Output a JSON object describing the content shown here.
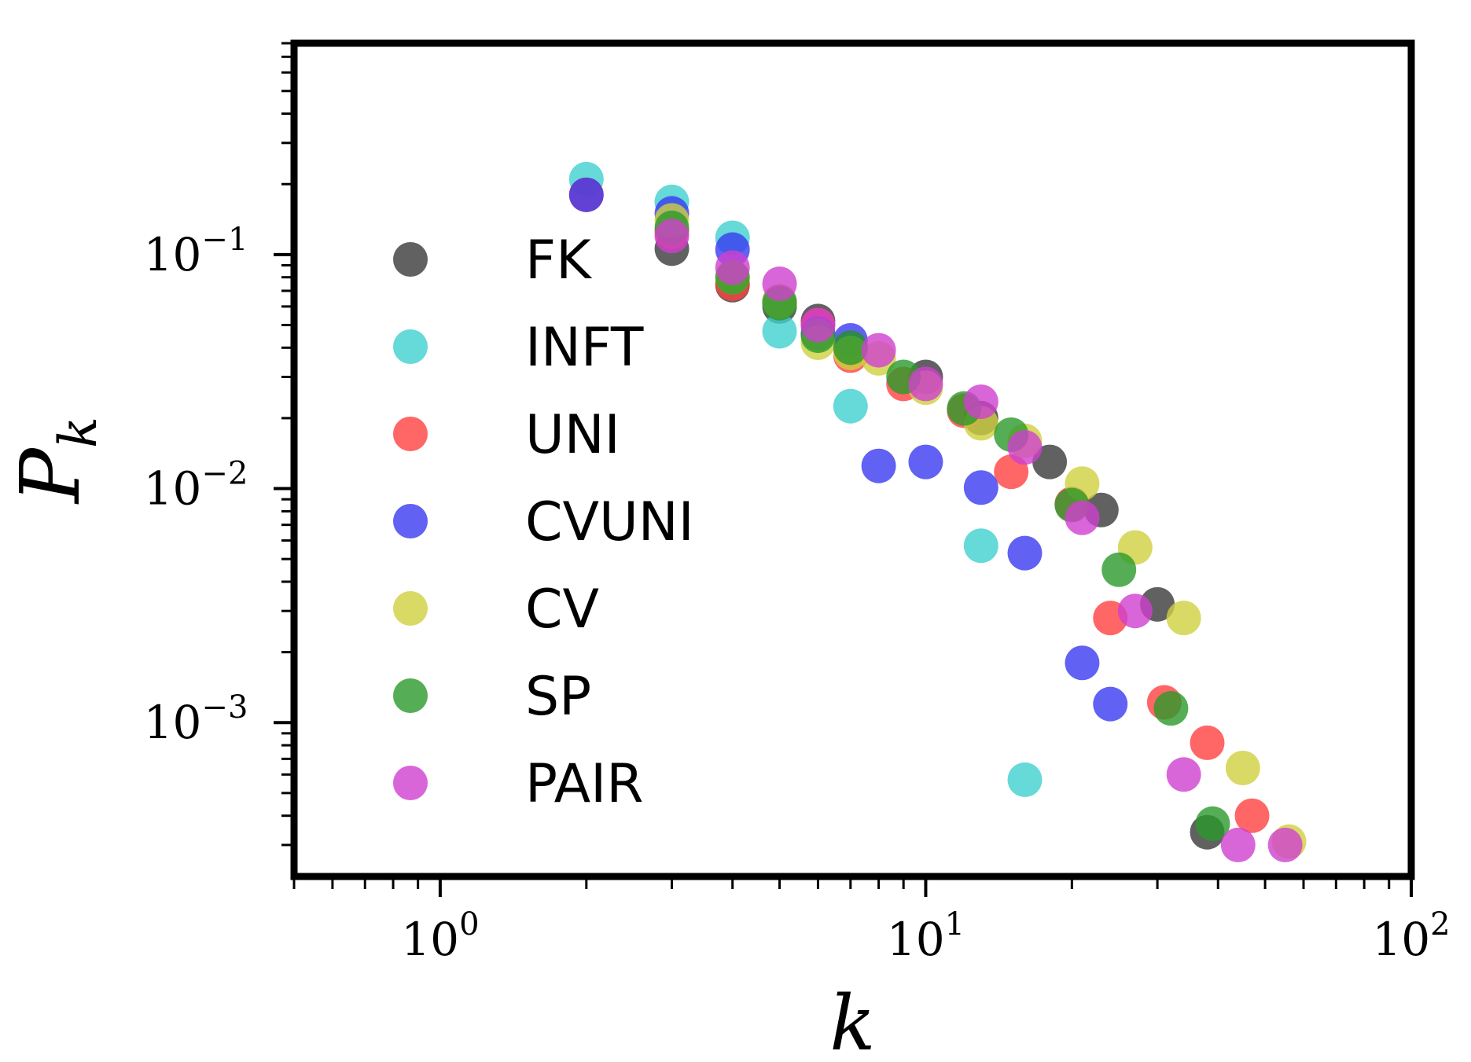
{
  "chart_data": {
    "type": "scatter",
    "title": "",
    "xlabel": "k",
    "ylabel": "P",
    "ylabel_sub": "k",
    "xscale": "log",
    "yscale": "log",
    "xlim": [
      0.5,
      100
    ],
    "ylim": [
      0.00022,
      0.8
    ],
    "x_ticks": [
      {
        "value": 1,
        "base": "10",
        "exp": "0"
      },
      {
        "value": 10,
        "base": "10",
        "exp": "1"
      },
      {
        "value": 100,
        "base": "10",
        "exp": "2"
      }
    ],
    "y_ticks": [
      {
        "value": 0.1,
        "base": "10",
        "exp": "−1"
      },
      {
        "value": 0.01,
        "base": "10",
        "exp": "−2"
      },
      {
        "value": 0.001,
        "base": "10",
        "exp": "−3"
      }
    ],
    "legend_position": "center-left",
    "series": [
      {
        "name": "FK",
        "color": "#3a3a3a",
        "x": [
          3,
          4,
          5,
          6,
          7,
          10,
          13,
          18,
          23,
          30,
          38
        ],
        "y": [
          0.106,
          0.074,
          0.06,
          0.052,
          0.04,
          0.03,
          0.02,
          0.013,
          0.0081,
          0.0032,
          0.00034
        ]
      },
      {
        "name": "INFT",
        "color": "#40d0d0",
        "x": [
          2,
          3,
          4,
          5,
          7,
          13,
          16
        ],
        "y": [
          0.21,
          0.168,
          0.118,
          0.047,
          0.0225,
          0.0057,
          0.00057
        ]
      },
      {
        "name": "UNI",
        "color": "#ff4040",
        "x": [
          2,
          3,
          4,
          5,
          6,
          7,
          9,
          12,
          15,
          20,
          24,
          31,
          38,
          47
        ],
        "y": [
          0.18,
          0.125,
          0.075,
          0.063,
          0.05,
          0.037,
          0.028,
          0.0215,
          0.0118,
          0.0086,
          0.0028,
          0.00122,
          0.00082,
          0.0004
        ]
      },
      {
        "name": "CVUNI",
        "color": "#3a3af0",
        "x": [
          2,
          3,
          4,
          5,
          6,
          7,
          8,
          10,
          13,
          16,
          21,
          24
        ],
        "y": [
          0.18,
          0.15,
          0.105,
          0.063,
          0.046,
          0.043,
          0.0125,
          0.013,
          0.0101,
          0.0053,
          0.0018,
          0.0012
        ]
      },
      {
        "name": "CV",
        "color": "#d0d040",
        "x": [
          3,
          4,
          5,
          6,
          7,
          8,
          10,
          13,
          16,
          21,
          27,
          34,
          45,
          56
        ],
        "y": [
          0.14,
          0.08,
          0.063,
          0.042,
          0.038,
          0.036,
          0.027,
          0.019,
          0.016,
          0.0105,
          0.0056,
          0.0028,
          0.00064,
          0.00031
        ]
      },
      {
        "name": "SP",
        "color": "#2a9a2a",
        "x": [
          3,
          4,
          5,
          6,
          7,
          9,
          12,
          15,
          20,
          25,
          32,
          39
        ],
        "y": [
          0.13,
          0.08,
          0.062,
          0.045,
          0.04,
          0.03,
          0.022,
          0.017,
          0.0085,
          0.0045,
          0.00115,
          0.00037
        ]
      },
      {
        "name": "PAIR",
        "color": "#d040d0",
        "x": [
          3,
          4,
          5,
          6,
          8,
          10,
          13,
          16,
          21,
          27,
          34,
          44,
          55
        ],
        "y": [
          0.12,
          0.088,
          0.075,
          0.05,
          0.039,
          0.028,
          0.0235,
          0.015,
          0.0075,
          0.003,
          0.0006,
          0.0003,
          0.0003
        ]
      }
    ]
  }
}
